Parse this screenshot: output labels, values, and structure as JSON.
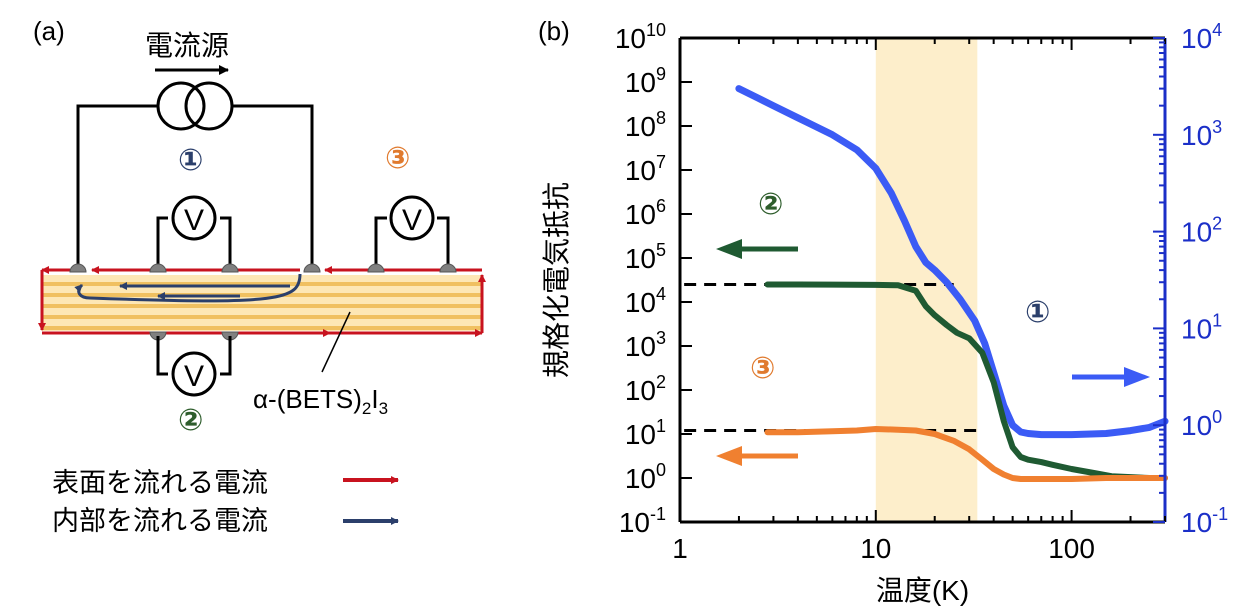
{
  "panel_a": {
    "label": "(a)",
    "source_label": "電流源",
    "voltmeter_label": "V",
    "circle_1": "①",
    "circle_2": "②",
    "circle_3": "③",
    "material_prefix": "α-(BETS)",
    "material_sub1": "2",
    "material_mid": "I",
    "material_sub2": "3",
    "legend_surface": "表面を流れる電流",
    "legend_bulk": "内部を流れる電流",
    "colors": {
      "surface": "#c8131f",
      "bulk": "#2b3f6b",
      "crystal_fill": "#fde7b5",
      "crystal_stripe": "#f0c060",
      "circle_1": "#2b3f6b",
      "circle_2": "#2e5d2c",
      "circle_3": "#e07a2e"
    }
  },
  "chart_data": {
    "type": "line",
    "panel_label": "(b)",
    "xlabel": "温度(K)",
    "ylabel_left": "規格化電気抵抗",
    "x_scale": "log",
    "xlim": [
      1,
      300
    ],
    "x_ticks": [
      "1",
      "10",
      "100"
    ],
    "y_scale_left": "log",
    "ylim_left": [
      0.1,
      10000000000
    ],
    "y_ticks_left": [
      {
        "base": "10",
        "exp": "10"
      },
      {
        "base": "10",
        "exp": "9"
      },
      {
        "base": "10",
        "exp": "8"
      },
      {
        "base": "10",
        "exp": "7"
      },
      {
        "base": "10",
        "exp": "6"
      },
      {
        "base": "10",
        "exp": "5"
      },
      {
        "base": "10",
        "exp": "4"
      },
      {
        "base": "10",
        "exp": "3"
      },
      {
        "base": "10",
        "exp": "2"
      },
      {
        "base": "10",
        "exp": "1"
      },
      {
        "base": "10",
        "exp": "0"
      },
      {
        "base": "10",
        "exp": "-1"
      }
    ],
    "y_scale_right": "log",
    "ylim_right": [
      0.1,
      10000
    ],
    "y_ticks_right": [
      {
        "base": "10",
        "exp": "4"
      },
      {
        "base": "10",
        "exp": "3"
      },
      {
        "base": "10",
        "exp": "2"
      },
      {
        "base": "10",
        "exp": "1"
      },
      {
        "base": "10",
        "exp": "0"
      },
      {
        "base": "10",
        "exp": "-1"
      }
    ],
    "shaded_region_x": [
      10,
      33
    ],
    "shaded_color": "#fdeecb",
    "reference_lines": [
      {
        "y_left": 25000,
        "x_range": [
          1.05,
          25
        ]
      },
      {
        "y_left": 12,
        "x_range": [
          1.05,
          35
        ]
      }
    ],
    "annotations": [
      {
        "text": "①",
        "color": "#2b3f6b"
      },
      {
        "text": "②",
        "color": "#2e5d2c"
      },
      {
        "text": "③",
        "color": "#e07a2e"
      }
    ],
    "series": [
      {
        "axis": "right",
        "color": "#3b5bf5",
        "x": [
          2,
          2.5,
          3,
          4,
          5,
          6,
          8,
          10,
          12,
          14,
          16,
          18,
          20,
          23,
          27,
          32,
          36,
          40,
          45,
          50,
          55,
          60,
          70,
          80,
          100,
          120,
          150,
          200,
          250,
          300
        ],
        "y": [
          3000,
          2400,
          2000,
          1500,
          1200,
          1000,
          700,
          450,
          250,
          130,
          70,
          48,
          40,
          30,
          20,
          12,
          7,
          3.5,
          1.6,
          1.0,
          0.85,
          0.82,
          0.8,
          0.8,
          0.8,
          0.81,
          0.82,
          0.88,
          0.95,
          1.1
        ]
      },
      {
        "axis": "left",
        "color": "#1f5a32",
        "x": [
          2.8,
          4,
          6,
          10,
          13,
          16,
          18,
          20,
          23,
          26,
          30,
          35,
          40,
          45,
          50,
          55,
          60,
          70,
          80,
          100,
          130,
          160,
          200,
          250,
          300
        ],
        "y": [
          25000,
          25000,
          24800,
          24500,
          24000,
          18000,
          8000,
          5000,
          3000,
          2000,
          1500,
          700,
          150,
          20,
          5,
          3,
          2.6,
          2.3,
          2.0,
          1.6,
          1.3,
          1.1,
          1.05,
          1.0,
          1.0
        ]
      },
      {
        "axis": "left",
        "color": "#f08030",
        "x": [
          2.8,
          4,
          6,
          8,
          10,
          13,
          16,
          20,
          25,
          30,
          35,
          40,
          45,
          50,
          55,
          60,
          80,
          100,
          150,
          200,
          300
        ],
        "y": [
          11,
          11,
          11.5,
          12,
          13,
          12.5,
          12,
          10,
          7,
          4.5,
          2.6,
          1.6,
          1.2,
          1.0,
          0.95,
          0.95,
          0.95,
          0.95,
          1.0,
          1.0,
          1.0
        ]
      }
    ],
    "arrows": [
      {
        "direction": "left",
        "color": "#1f5a32",
        "axis": "left"
      },
      {
        "direction": "left",
        "color": "#f08030",
        "axis": "left"
      },
      {
        "direction": "right",
        "color": "#3b5bf5",
        "axis": "right"
      }
    ],
    "left_axis_color": "#000000",
    "right_axis_color": "#1b2fc8"
  }
}
